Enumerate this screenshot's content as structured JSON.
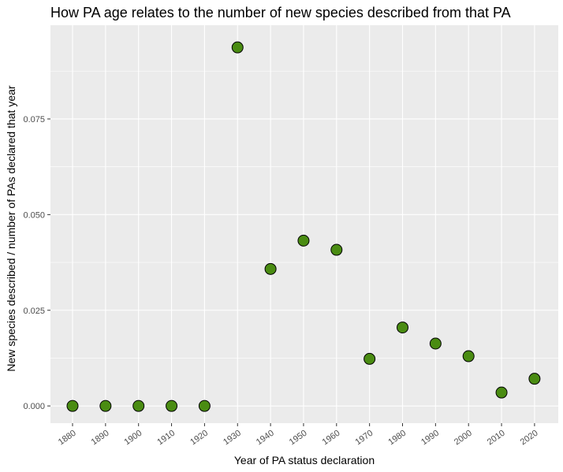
{
  "chart_data": {
    "type": "scatter",
    "title": "How PA age relates to the number of new species described from that PA",
    "xlabel": "Year of PA status declaration",
    "ylabel": "New species described / number of PAs declared that year",
    "x_categories": [
      "1880",
      "1890",
      "1900",
      "1910",
      "1920",
      "1930",
      "1940",
      "1950",
      "1960",
      "1970",
      "1980",
      "1990",
      "2000",
      "2010",
      "2020"
    ],
    "y_ticks": [
      {
        "value": 0,
        "label": "0.000"
      },
      {
        "value": 0.025,
        "label": "0.025"
      },
      {
        "value": 0.05,
        "label": "0.050"
      },
      {
        "value": 0.075,
        "label": "0.075"
      }
    ],
    "ylim": [
      -0.0045,
      0.0995
    ],
    "series": [
      {
        "name": "points",
        "x": [
          "1880",
          "1890",
          "1900",
          "1910",
          "1920",
          "1930",
          "1940",
          "1950",
          "1960",
          "1970",
          "1980",
          "1990",
          "2000",
          "2010",
          "2020"
        ],
        "y": [
          0.0,
          0.0,
          0.0,
          0.0,
          0.0,
          0.0937,
          0.0358,
          0.0432,
          0.0408,
          0.0123,
          0.0205,
          0.0163,
          0.013,
          0.0035,
          0.0071
        ]
      }
    ],
    "colors": {
      "panel_background": "#ebebeb",
      "grid_major": "#ffffff",
      "point_fill": "#4a8c12",
      "point_stroke": "#000000"
    },
    "grid": true,
    "legend": "none"
  }
}
